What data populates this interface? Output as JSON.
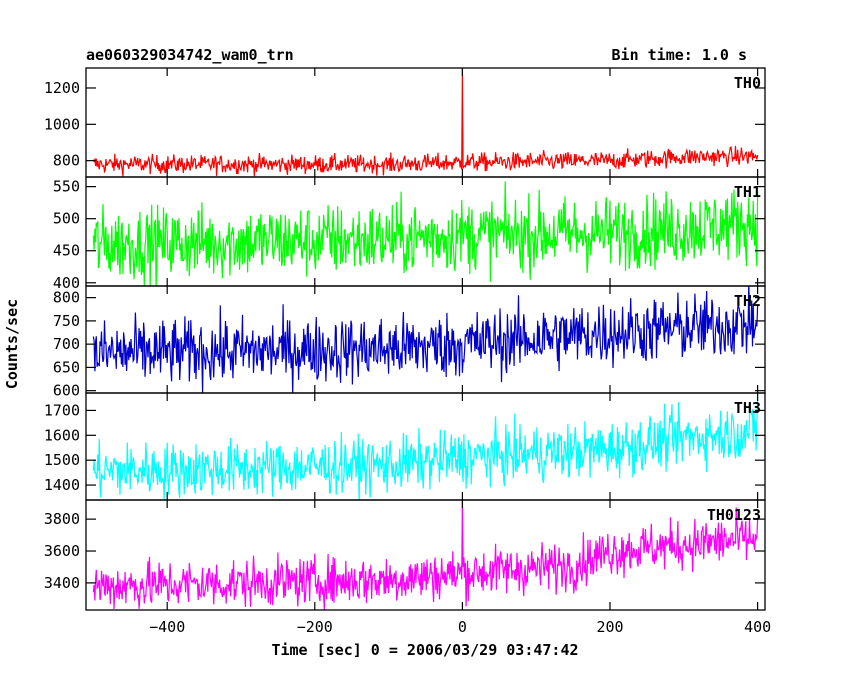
{
  "chart_data": {
    "type": "line",
    "title": "ae060329034742_wam0_trn",
    "subtitle": "Bin time: 1.0 s",
    "xlabel": "Time [sec] 0 = 2006/03/29 03:47:42",
    "ylabel": "Counts/sec",
    "xlim": [
      -510,
      410
    ],
    "xticks": [
      -400,
      -200,
      0,
      200,
      400
    ],
    "panels": [
      {
        "name": "TH0",
        "color": "#ff0000",
        "ylim": [
          710,
          1310
        ],
        "yticks": [
          800,
          1000,
          1200
        ],
        "trend": [
          [
            -500,
            780
          ],
          [
            -100,
            780
          ],
          [
            0,
            790
          ],
          [
            200,
            800
          ],
          [
            300,
            820
          ],
          [
            400,
            825
          ]
        ],
        "noise": 25,
        "spikes": [
          {
            "x": 0,
            "y": 1310
          }
        ]
      },
      {
        "name": "TH1",
        "color": "#00ff00",
        "ylim": [
          395,
          565
        ],
        "yticks": [
          400,
          450,
          500,
          550
        ],
        "trend": [
          [
            -500,
            460
          ],
          [
            -100,
            468
          ],
          [
            0,
            475
          ],
          [
            200,
            478
          ],
          [
            300,
            485
          ],
          [
            400,
            495
          ]
        ],
        "noise": 28,
        "spikes": []
      },
      {
        "name": "TH2",
        "color": "#0000cc",
        "ylim": [
          595,
          825
        ],
        "yticks": [
          600,
          650,
          700,
          750,
          800
        ],
        "trend": [
          [
            -500,
            680
          ],
          [
            -100,
            690
          ],
          [
            0,
            700
          ],
          [
            200,
            725
          ],
          [
            300,
            735
          ],
          [
            400,
            745
          ]
        ],
        "noise": 35,
        "spikes": []
      },
      {
        "name": "TH3",
        "color": "#00ffff",
        "ylim": [
          1340,
          1770
        ],
        "yticks": [
          1400,
          1500,
          1600,
          1700
        ],
        "trend": [
          [
            -500,
            1455
          ],
          [
            -100,
            1480
          ],
          [
            0,
            1510
          ],
          [
            200,
            1545
          ],
          [
            300,
            1590
          ],
          [
            400,
            1620
          ]
        ],
        "noise": 55,
        "spikes": [
          {
            "x": 400,
            "y": 1770
          }
        ]
      },
      {
        "name": "TH0123",
        "color": "#ff00ff",
        "ylim": [
          3230,
          3920
        ],
        "yticks": [
          3400,
          3600,
          3800
        ],
        "trend": [
          [
            -500,
            3380
          ],
          [
            -100,
            3420
          ],
          [
            0,
            3460
          ],
          [
            150,
            3510
          ],
          [
            200,
            3600
          ],
          [
            300,
            3640
          ],
          [
            400,
            3680
          ]
        ],
        "noise": 75,
        "spikes": [
          {
            "x": 0,
            "y": 3920
          }
        ]
      }
    ]
  }
}
